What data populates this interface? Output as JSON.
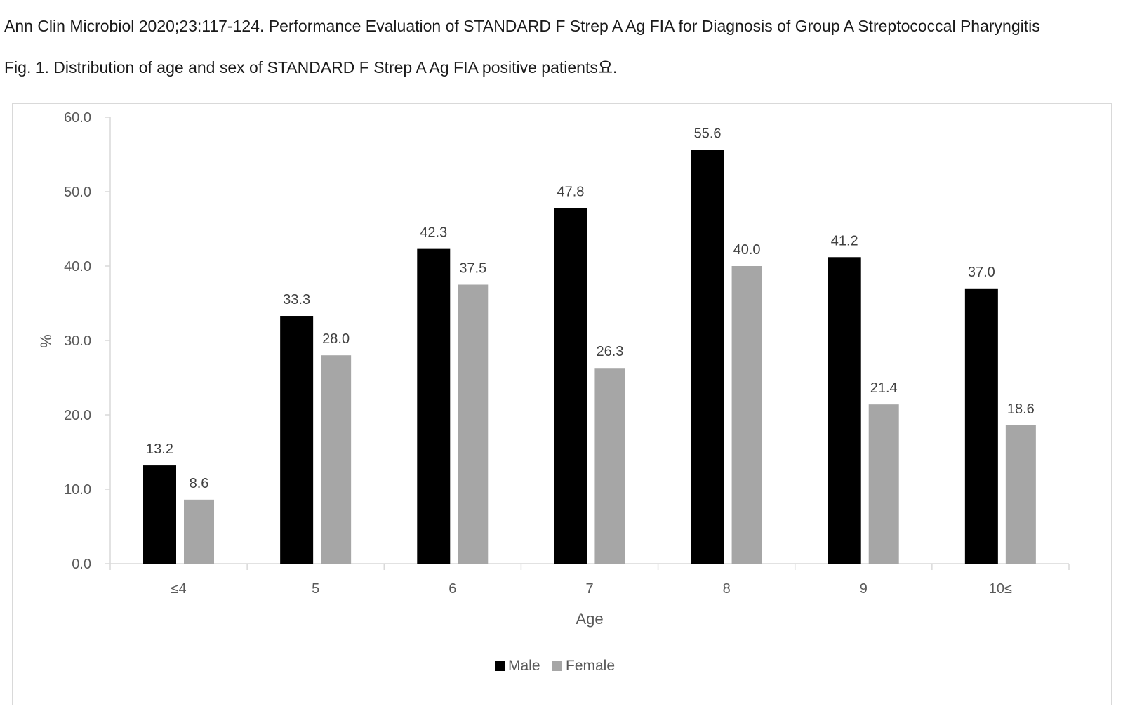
{
  "citation": "Ann Clin Microbiol 2020;23:117-124. Performance Evaluation of STANDARD F Strep A Ag FIA for Diagnosis of Group A Streptococcal Pharyngitis",
  "caption": "Fig. 1. Distribution of age and sex of STANDARD F Strep A Ag FIA positive patients요.",
  "chart_data": {
    "type": "bar",
    "title": "",
    "xlabel": "Age",
    "ylabel": "%",
    "categories": [
      "≤4",
      "5",
      "6",
      "7",
      "8",
      "9",
      "10≤"
    ],
    "series": [
      {
        "name": "Male",
        "color": "#000000",
        "values": [
          13.2,
          33.3,
          42.3,
          47.8,
          55.6,
          41.2,
          37.0
        ]
      },
      {
        "name": "Female",
        "color": "#a6a6a6",
        "values": [
          8.6,
          28.0,
          37.5,
          26.3,
          40.0,
          21.4,
          18.6
        ]
      }
    ],
    "ylim": [
      0,
      60
    ],
    "yticks": [
      "0.0",
      "10.0",
      "20.0",
      "30.0",
      "40.0",
      "50.0",
      "60.0"
    ],
    "data_labels": [
      [
        "13.2",
        "33.3",
        "42.3",
        "47.8",
        "55.6",
        "41.2",
        "37.0"
      ],
      [
        "8.6",
        "28.0",
        "37.5",
        "26.3",
        "40.0",
        "21.4",
        "18.6"
      ]
    ],
    "grid": false,
    "legend_position": "bottom"
  }
}
